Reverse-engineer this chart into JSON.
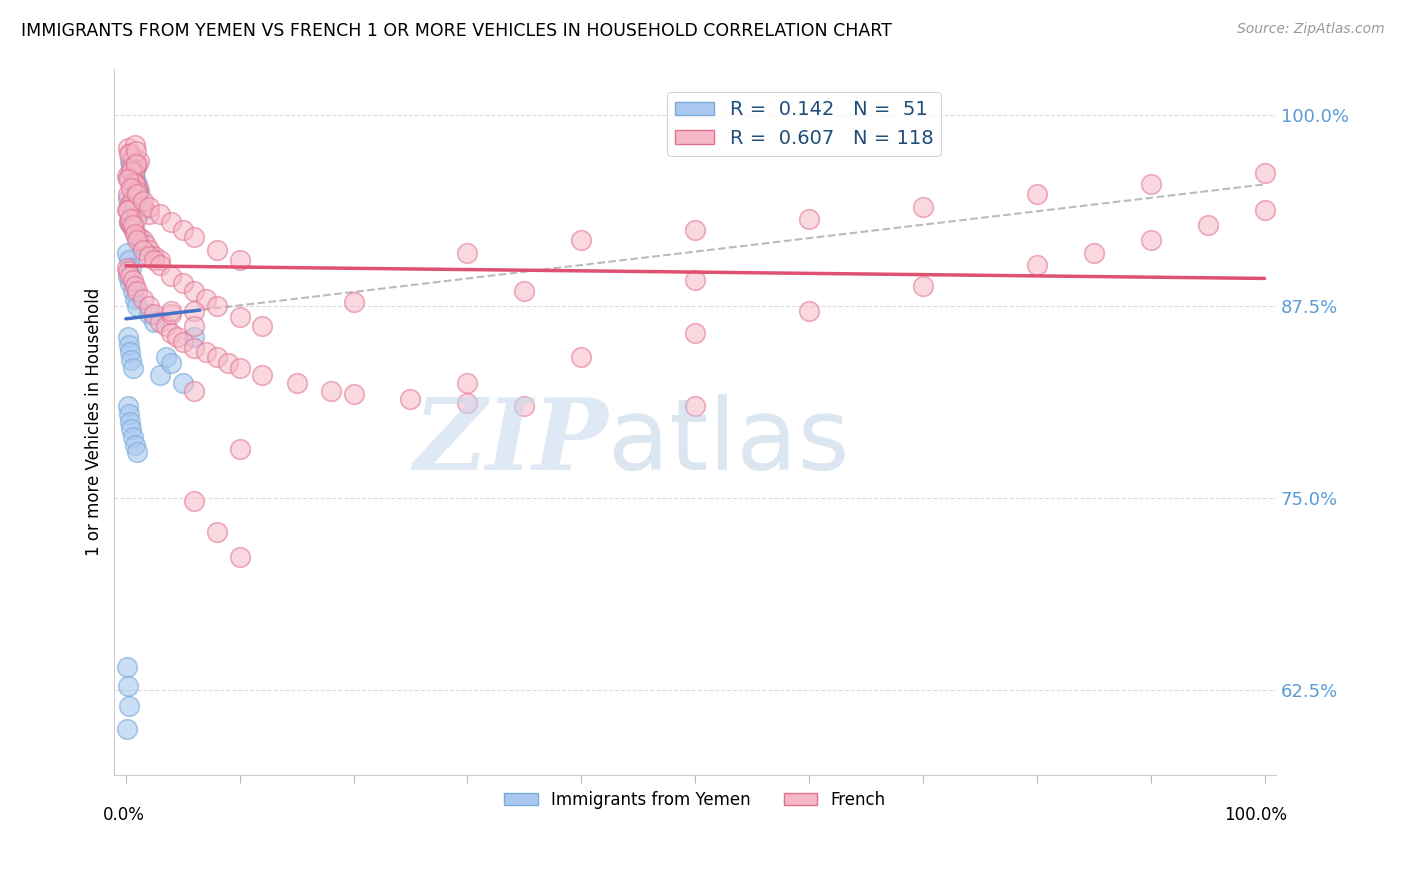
{
  "title": "IMMIGRANTS FROM YEMEN VS FRENCH 1 OR MORE VEHICLES IN HOUSEHOLD CORRELATION CHART",
  "source": "Source: ZipAtlas.com",
  "ylabel": "1 or more Vehicles in Household",
  "legend_label1": "Immigrants from Yemen",
  "legend_label2": "French",
  "R1": 0.142,
  "N1": 51,
  "R2": 0.607,
  "N2": 118,
  "blue_color": "#A8C8F0",
  "blue_edge_color": "#7AAAD8",
  "pink_color": "#F5B8C8",
  "pink_edge_color": "#E07090",
  "blue_line_color": "#4472C4",
  "pink_line_color": "#E05070",
  "dash_color": "#AAAAAA",
  "ytick_values": [
    0.625,
    0.75,
    0.875,
    1.0
  ],
  "ytick_color": "#5B9BD5",
  "xlim": [
    0.0,
    1.0
  ],
  "ylim": [
    0.57,
    1.03
  ],
  "blue_x": [
    0.004,
    0.006,
    0.008,
    0.01,
    0.012,
    0.003,
    0.005,
    0.007,
    0.009,
    0.011,
    0.002,
    0.004,
    0.006,
    0.008,
    0.015,
    0.003,
    0.005,
    0.007,
    0.01,
    0.013,
    0.001,
    0.003,
    0.005,
    0.002,
    0.004,
    0.006,
    0.008,
    0.01,
    0.02,
    0.025,
    0.002,
    0.003,
    0.004,
    0.005,
    0.006,
    0.03,
    0.035,
    0.04,
    0.05,
    0.06,
    0.002,
    0.003,
    0.004,
    0.005,
    0.006,
    0.008,
    0.01,
    0.001,
    0.002,
    0.003,
    0.001
  ],
  "blue_y": [
    0.97,
    0.965,
    0.958,
    0.955,
    0.95,
    0.96,
    0.968,
    0.962,
    0.966,
    0.948,
    0.945,
    0.94,
    0.935,
    0.942,
    0.938,
    0.93,
    0.928,
    0.925,
    0.92,
    0.915,
    0.91,
    0.905,
    0.9,
    0.895,
    0.89,
    0.885,
    0.88,
    0.875,
    0.87,
    0.865,
    0.855,
    0.85,
    0.845,
    0.84,
    0.835,
    0.83,
    0.842,
    0.838,
    0.825,
    0.855,
    0.81,
    0.805,
    0.8,
    0.795,
    0.79,
    0.785,
    0.78,
    0.64,
    0.628,
    0.615,
    0.6
  ],
  "pink_x": [
    0.002,
    0.004,
    0.006,
    0.008,
    0.01,
    0.012,
    0.003,
    0.005,
    0.007,
    0.009,
    0.001,
    0.003,
    0.005,
    0.007,
    0.009,
    0.011,
    0.002,
    0.004,
    0.006,
    0.008,
    0.01,
    0.015,
    0.02,
    0.001,
    0.003,
    0.005,
    0.007,
    0.009,
    0.012,
    0.015,
    0.018,
    0.02,
    0.025,
    0.03,
    0.001,
    0.002,
    0.004,
    0.006,
    0.008,
    0.01,
    0.015,
    0.02,
    0.025,
    0.03,
    0.035,
    0.04,
    0.045,
    0.05,
    0.06,
    0.07,
    0.08,
    0.09,
    0.1,
    0.12,
    0.15,
    0.18,
    0.2,
    0.25,
    0.3,
    0.35,
    0.002,
    0.004,
    0.006,
    0.008,
    0.01,
    0.015,
    0.02,
    0.025,
    0.03,
    0.04,
    0.05,
    0.06,
    0.07,
    0.08,
    0.1,
    0.12,
    0.002,
    0.005,
    0.01,
    0.015,
    0.02,
    0.03,
    0.04,
    0.05,
    0.06,
    0.08,
    0.1,
    0.3,
    0.4,
    0.5,
    0.6,
    0.7,
    0.8,
    0.9,
    1.0,
    0.06,
    0.2,
    0.35,
    0.5,
    0.04,
    0.06,
    0.1,
    0.5,
    0.06,
    0.08,
    0.1,
    0.3,
    0.4,
    0.5,
    0.6,
    0.7,
    0.8,
    0.85,
    0.9,
    0.95,
    1.0,
    0.04,
    0.06
  ],
  "pink_y": [
    0.978,
    0.975,
    0.972,
    0.98,
    0.968,
    0.97,
    0.974,
    0.965,
    0.962,
    0.976,
    0.96,
    0.958,
    0.963,
    0.956,
    0.968,
    0.952,
    0.948,
    0.942,
    0.945,
    0.955,
    0.95,
    0.94,
    0.935,
    0.938,
    0.93,
    0.928,
    0.925,
    0.932,
    0.92,
    0.918,
    0.915,
    0.912,
    0.908,
    0.905,
    0.9,
    0.898,
    0.895,
    0.892,
    0.888,
    0.885,
    0.88,
    0.875,
    0.87,
    0.865,
    0.862,
    0.858,
    0.855,
    0.852,
    0.848,
    0.845,
    0.842,
    0.838,
    0.835,
    0.83,
    0.825,
    0.82,
    0.818,
    0.815,
    0.812,
    0.81,
    0.938,
    0.932,
    0.928,
    0.922,
    0.918,
    0.912,
    0.908,
    0.905,
    0.902,
    0.895,
    0.89,
    0.885,
    0.88,
    0.875,
    0.868,
    0.862,
    0.958,
    0.952,
    0.948,
    0.944,
    0.94,
    0.935,
    0.93,
    0.925,
    0.92,
    0.912,
    0.905,
    0.91,
    0.918,
    0.925,
    0.932,
    0.94,
    0.948,
    0.955,
    0.962,
    0.872,
    0.878,
    0.885,
    0.892,
    0.87,
    0.82,
    0.782,
    0.81,
    0.748,
    0.728,
    0.712,
    0.825,
    0.842,
    0.858,
    0.872,
    0.888,
    0.902,
    0.91,
    0.918,
    0.928,
    0.938,
    0.872,
    0.862
  ]
}
